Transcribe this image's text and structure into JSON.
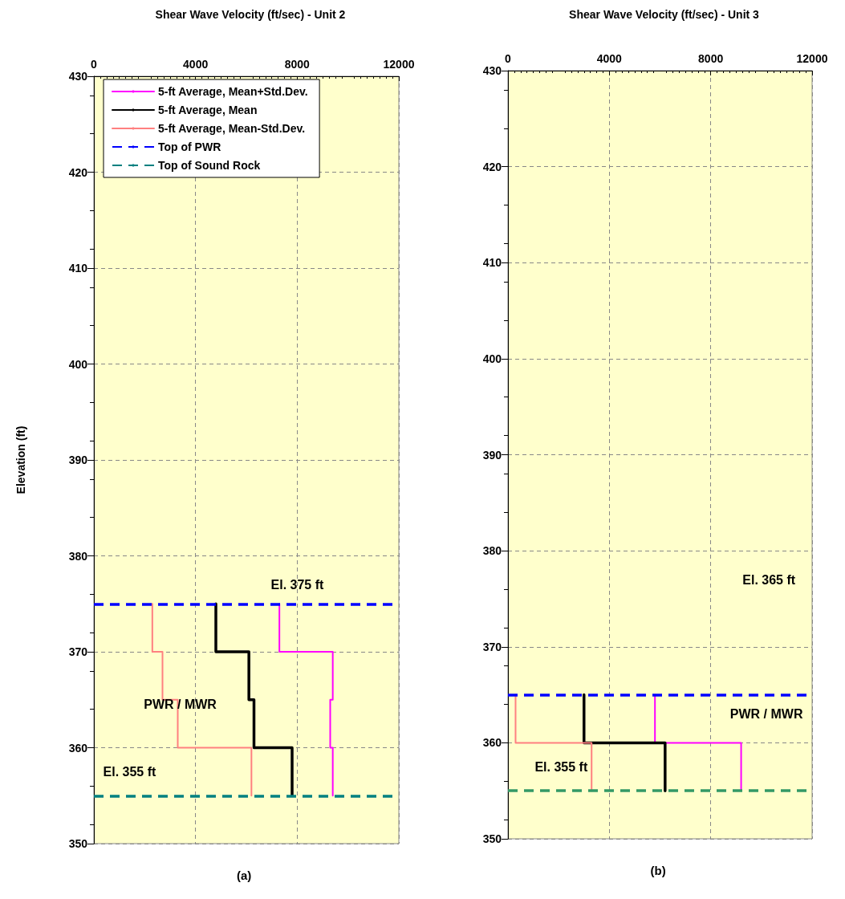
{
  "chart_data": [
    {
      "type": "line",
      "xlabel": "Shear Wave Velocity (ft/sec) - Unit 2",
      "ylabel": "Elevation (ft)",
      "xlim": [
        0,
        12000
      ],
      "xticks": [
        0,
        4000,
        8000,
        12000
      ],
      "ylim": [
        350,
        430
      ],
      "yticks": [
        350,
        360,
        370,
        380,
        390,
        400,
        410,
        420,
        430
      ],
      "grid": true,
      "legend": "top left",
      "marker": "none",
      "line_style": "solid",
      "series": [
        {
          "name": "5-ft Average, Mean+Std.Dev.",
          "color": "#ff00ff",
          "x": [
            7300,
            7300,
            9400,
            9400,
            9300,
            9300,
            9400,
            9400
          ],
          "values": [
            375,
            370,
            370,
            365,
            365,
            360,
            360,
            355
          ]
        },
        {
          "name": "5-ft Average, Mean",
          "color": "#000000",
          "x": [
            4800,
            4800,
            6100,
            6100,
            6300,
            6300,
            7800,
            7800
          ],
          "values": [
            375,
            370,
            370,
            365,
            365,
            360,
            360,
            355
          ]
        },
        {
          "name": "5-ft Average, Mean-Std.Dev.",
          "color": "#ff8080",
          "x": [
            2300,
            2300,
            2700,
            2700,
            3300,
            3300,
            6200,
            6200
          ],
          "values": [
            375,
            370,
            370,
            365,
            365,
            360,
            360,
            355
          ]
        }
      ],
      "ref_lines": [
        {
          "axis": "y",
          "value": 375,
          "label": "Top of PWR",
          "color": "#0000ff",
          "line_style": "dashed"
        },
        {
          "axis": "y",
          "value": 355,
          "label": "Top of Sound Rock",
          "color": "#008080",
          "line_style": "dashed"
        }
      ],
      "annotations": [
        "El. 375 ft",
        "PWR / MWR",
        "El. 355 ft",
        "(a)"
      ]
    },
    {
      "type": "line",
      "xlabel": "Shear Wave Velocity (ft/sec) - Unit 3",
      "xlim": [
        0,
        12000
      ],
      "xticks": [
        0,
        4000,
        8000,
        12000
      ],
      "ylim": [
        350,
        430
      ],
      "yticks": [
        350,
        360,
        370,
        380,
        390,
        400,
        410,
        420,
        430
      ],
      "grid": true,
      "legend": false,
      "marker": "none",
      "line_style": "solid",
      "series": [
        {
          "color": "#ff00ff",
          "x": [
            5800,
            5800,
            9200,
            9200
          ],
          "values": [
            365,
            360,
            360,
            355
          ]
        },
        {
          "color": "#000000",
          "x": [
            3000,
            3000,
            6200,
            6200
          ],
          "values": [
            365,
            360,
            360,
            355
          ]
        },
        {
          "color": "#ff8080",
          "x": [
            300,
            300,
            3300,
            3300
          ],
          "values": [
            365,
            360,
            360,
            355
          ]
        }
      ],
      "ref_lines": [
        {
          "axis": "y",
          "value": 365,
          "color": "#0000ff",
          "line_style": "dashed"
        },
        {
          "axis": "y",
          "value": 355,
          "color": "#339966",
          "line_style": "dashed"
        }
      ],
      "annotations": [
        "El. 365 ft",
        "PWR / MWR",
        "El. 355 ft",
        "(b)"
      ]
    }
  ]
}
